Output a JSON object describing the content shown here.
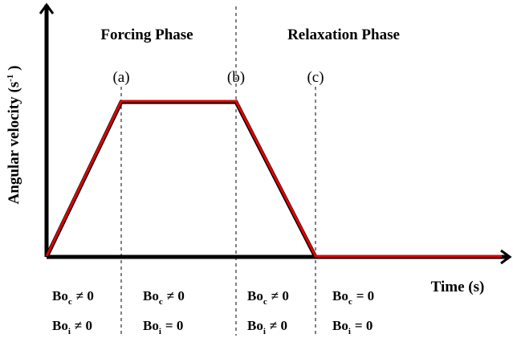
{
  "phases": [
    "Forcing Phase",
    "Relaxation Phase"
  ],
  "points": [
    "(a)",
    "(b)",
    "(c)"
  ],
  "y_label": {
    "text": "Angular velocity (s",
    "superscript": "-1",
    "close": " )"
  },
  "x_label": "Time (s)",
  "conditions": [
    [
      {
        "symbol": "Bo",
        "subscript": "c",
        "relation": "≠ 0"
      },
      {
        "symbol": "Bo",
        "subscript": "i",
        "relation": "≠ 0"
      }
    ],
    [
      {
        "symbol": "Bo",
        "subscript": "c",
        "relation": "≠ 0"
      },
      {
        "symbol": "Bo",
        "subscript": "i",
        "relation": "= 0"
      }
    ],
    [
      {
        "symbol": "Bo",
        "subscript": "c",
        "relation": "≠ 0"
      },
      {
        "symbol": "Bo",
        "subscript": "i",
        "relation": "≠ 0"
      }
    ],
    [
      {
        "symbol": "Bo",
        "subscript": "c",
        "relation": "= 0"
      },
      {
        "symbol": "Bo",
        "subscript": "i",
        "relation": "= 0"
      }
    ]
  ]
}
